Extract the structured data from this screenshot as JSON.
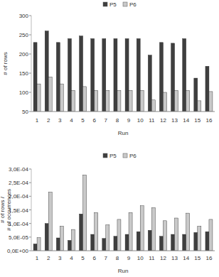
{
  "chart_data": [
    {
      "type": "bar",
      "x_label": "Run",
      "y_label": "# of rows",
      "categories": [
        "1",
        "2",
        "3",
        "4",
        "5",
        "6",
        "7",
        "8",
        "9",
        "10",
        "11",
        "12",
        "13",
        "14",
        "15",
        "16"
      ],
      "series": [
        {
          "name": "P5",
          "color": "#3f3f3f",
          "values": [
            230,
            260,
            230,
            240,
            247,
            240,
            240,
            240,
            240,
            240,
            197,
            230,
            228,
            240,
            137,
            168
          ]
        },
        {
          "name": "P6",
          "color": "#c9c9c9",
          "values": [
            122,
            140,
            122,
            105,
            115,
            105,
            105,
            105,
            105,
            105,
            80,
            100,
            105,
            105,
            78,
            102
          ]
        }
      ],
      "ylim": [
        50,
        300
      ],
      "yticks": [
        50,
        100,
        150,
        200,
        250,
        300
      ],
      "grid": false,
      "legend": "top"
    },
    {
      "type": "bar",
      "x_label": "Run",
      "y_label": "# of rows / # of occurrences",
      "categories": [
        "1",
        "2",
        "3",
        "4",
        "5",
        "6",
        "7",
        "8",
        "9",
        "10",
        "11",
        "12",
        "13",
        "14",
        "15",
        "16"
      ],
      "series": [
        {
          "name": "P5",
          "color": "#3f3f3f",
          "values": [
            2.5e-05,
            0.0001,
            4.7e-05,
            3.8e-05,
            0.000135,
            6e-05,
            4.5e-05,
            5.3e-05,
            6e-05,
            7e-05,
            7.5e-05,
            5.3e-05,
            6e-05,
            6e-05,
            6.7e-05,
            7e-05
          ]
        },
        {
          "name": "P6",
          "color": "#c9c9c9",
          "values": [
            4.8e-05,
            0.000215,
            9e-05,
            7.8e-05,
            0.000278,
            0.00014,
            9.5e-05,
            0.000115,
            0.00014,
            0.000165,
            0.000158,
            0.00011,
            0.00012,
            0.000138,
            9e-05,
            0.000115
          ]
        }
      ],
      "ylim": [
        0,
        0.0003
      ],
      "yticks": [
        {
          "value": 0,
          "label": "0,0E+00"
        },
        {
          "value": 5e-05,
          "label": "5,0E-05"
        },
        {
          "value": 0.0001,
          "label": "1,0E-04"
        },
        {
          "value": 0.00015,
          "label": "1,5E-04"
        },
        {
          "value": 0.0002,
          "label": "2,0E-04"
        },
        {
          "value": 0.00025,
          "label": "2,5E-04"
        },
        {
          "value": 0.0003,
          "label": "3,0E-04"
        }
      ],
      "grid": false,
      "legend": "top"
    }
  ]
}
